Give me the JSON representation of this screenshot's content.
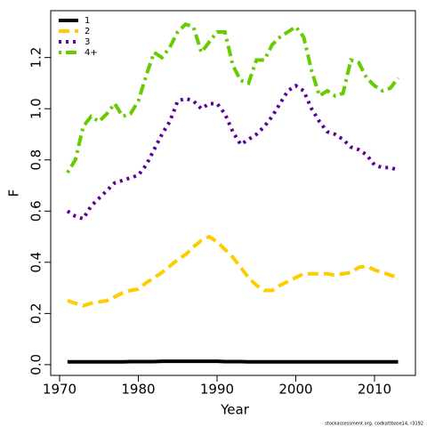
{
  "chart_data": {
    "type": "line",
    "x_label": "Year",
    "y_label": "F",
    "footnote": "stockassessment.org, codkattbase14, r3192",
    "x": [
      1971,
      1972,
      1973,
      1974,
      1975,
      1976,
      1977,
      1978,
      1979,
      1980,
      1981,
      1982,
      1983,
      1984,
      1985,
      1986,
      1987,
      1988,
      1989,
      1990,
      1991,
      1992,
      1993,
      1994,
      1995,
      1996,
      1997,
      1998,
      1999,
      2000,
      2001,
      2002,
      2003,
      2004,
      2005,
      2006,
      2007,
      2008,
      2009,
      2010,
      2011,
      2012,
      2013
    ],
    "series": [
      {
        "name": "1",
        "color": "#000000",
        "dash": "solid",
        "values": [
          0.011,
          0.011,
          0.011,
          0.011,
          0.011,
          0.011,
          0.011,
          0.011,
          0.012,
          0.012,
          0.012,
          0.012,
          0.013,
          0.013,
          0.013,
          0.013,
          0.013,
          0.013,
          0.013,
          0.013,
          0.012,
          0.012,
          0.012,
          0.011,
          0.011,
          0.011,
          0.011,
          0.011,
          0.011,
          0.011,
          0.011,
          0.011,
          0.011,
          0.011,
          0.011,
          0.011,
          0.011,
          0.011,
          0.011,
          0.011,
          0.011,
          0.011,
          0.011
        ]
      },
      {
        "name": "2",
        "color": "#FFCC00",
        "dash": "dashed",
        "values": [
          0.25,
          0.24,
          0.23,
          0.24,
          0.245,
          0.25,
          0.265,
          0.28,
          0.29,
          0.295,
          0.32,
          0.34,
          0.36,
          0.385,
          0.41,
          0.43,
          0.46,
          0.485,
          0.5,
          0.48,
          0.45,
          0.42,
          0.38,
          0.34,
          0.31,
          0.29,
          0.29,
          0.31,
          0.325,
          0.34,
          0.355,
          0.355,
          0.355,
          0.355,
          0.35,
          0.355,
          0.36,
          0.38,
          0.385,
          0.37,
          0.36,
          0.35,
          0.34
        ]
      },
      {
        "name": "3",
        "color": "#5C0099",
        "dash": "dotted",
        "values": [
          0.6,
          0.58,
          0.57,
          0.62,
          0.65,
          0.68,
          0.71,
          0.72,
          0.73,
          0.74,
          0.78,
          0.84,
          0.9,
          0.95,
          1.03,
          1.04,
          1.03,
          1.0,
          1.02,
          1.02,
          0.98,
          0.91,
          0.86,
          0.88,
          0.9,
          0.93,
          0.97,
          1.02,
          1.07,
          1.09,
          1.07,
          1.0,
          0.95,
          0.91,
          0.9,
          0.88,
          0.85,
          0.84,
          0.82,
          0.78,
          0.77,
          0.77,
          0.76
        ]
      },
      {
        "name": "4+",
        "color": "#66CC00",
        "dash": "dotdash",
        "values": [
          0.75,
          0.8,
          0.93,
          0.97,
          0.95,
          0.98,
          1.02,
          0.97,
          0.98,
          1.03,
          1.13,
          1.22,
          1.2,
          1.24,
          1.3,
          1.33,
          1.32,
          1.22,
          1.26,
          1.3,
          1.3,
          1.17,
          1.11,
          1.1,
          1.19,
          1.19,
          1.25,
          1.28,
          1.3,
          1.32,
          1.28,
          1.15,
          1.05,
          1.07,
          1.05,
          1.06,
          1.19,
          1.18,
          1.12,
          1.09,
          1.07,
          1.08,
          1.12
        ]
      }
    ],
    "xlim": [
      1968.87,
      2015.2
    ],
    "ylim": [
      -0.042,
      1.383
    ],
    "xticks": [
      1970,
      1980,
      1990,
      2000,
      2010
    ],
    "yticks": [
      {
        "value": 0,
        "label": "0.0"
      },
      {
        "value": 0.2,
        "label": "0.2"
      },
      {
        "value": 0.4,
        "label": "0.4"
      },
      {
        "value": 0.6,
        "label": "0.6"
      },
      {
        "value": 0.8,
        "label": "0.8"
      },
      {
        "value": 1,
        "label": "1.0"
      },
      {
        "value": 1.2,
        "label": "1.2"
      }
    ],
    "legend": "top-left",
    "grid": false
  }
}
